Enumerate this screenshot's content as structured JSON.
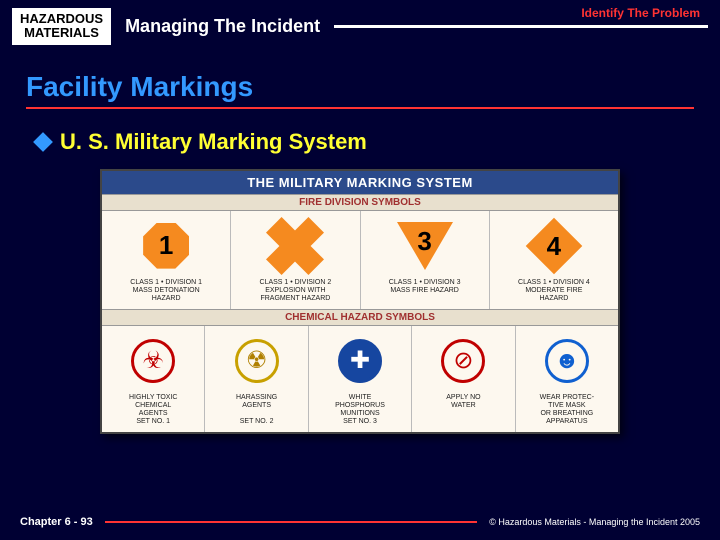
{
  "header": {
    "hazmat_top": "HAZARDOUS",
    "hazmat_bottom": "MATERIALS",
    "subtitle": "Managing The Incident",
    "tagline": "Identify The Problem"
  },
  "title": "Facility Markings",
  "bullet": "U. S. Military Marking System",
  "chart": {
    "title": "THE MILITARY MARKING SYSTEM",
    "band1": "FIRE DIVISION SYMBOLS",
    "band2": "CHEMICAL HAZARD SYMBOLS",
    "fire": [
      {
        "num": "1",
        "caption": "CLASS 1 • DIVISION 1\nMASS DETONATION\nHAZARD"
      },
      {
        "num": "2",
        "caption": "CLASS 1 • DIVISION 2\nEXPLOSION WITH\nFRAGMENT HAZARD"
      },
      {
        "num": "3",
        "caption": "CLASS 1 • DIVISION 3\nMASS FIRE HAZARD"
      },
      {
        "num": "4",
        "caption": "CLASS 1 • DIVISION 4\nMODERATE FIRE\nHAZARD"
      }
    ],
    "chem": [
      {
        "caption": "HIGHLY TOXIC\nCHEMICAL\nAGENTS\nSET NO. 1",
        "border": "#c00000",
        "glyph": "☣",
        "gcolor": "#c00000"
      },
      {
        "caption": "HARASSING\nAGENTS\n\nSET NO. 2",
        "border": "#c8a000",
        "glyph": "☢",
        "gcolor": "#b08000"
      },
      {
        "caption": "WHITE\nPHOSPHORUS\nMUNITIONS\nSET NO. 3",
        "border": "#1646a0",
        "glyph": "✚",
        "gcolor": "#ffffff"
      },
      {
        "caption": "APPLY NO\nWATER",
        "border": "#c00000",
        "glyph": "⊘",
        "gcolor": "#c00000"
      },
      {
        "caption": "WEAR PROTEC-\nTIVE MASK\nOR BREATHING\nAPPARATUS",
        "border": "#1060d0",
        "glyph": "☻",
        "gcolor": "#1060d0"
      }
    ],
    "colors": {
      "fire_shape": "#f58a1f",
      "panel_bg": "#fdf8ef",
      "head_bg": "#2b4a8b"
    }
  },
  "footer": {
    "chapter": "Chapter 6 - 93",
    "copyright": "© Hazardous Materials - Managing the Incident 2005"
  }
}
